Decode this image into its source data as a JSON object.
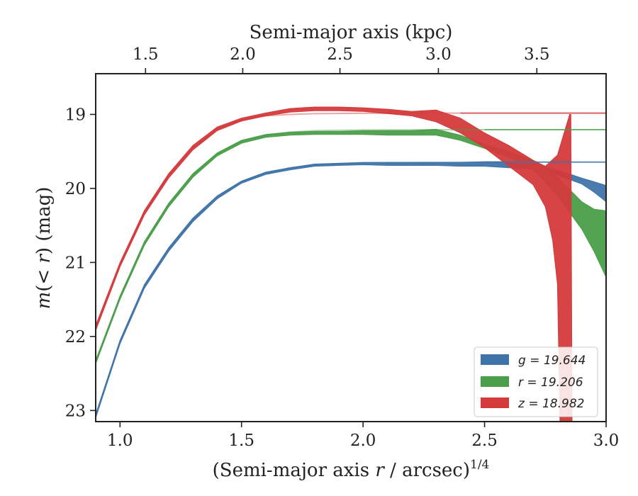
{
  "chart_data": {
    "type": "area",
    "xlabel": "(Semi-major axis r / arcsec)",
    "xlabel_parts": [
      "(Semi-major axis ",
      "r",
      " / arcsec)",
      "1/4"
    ],
    "ylabel_parts": [
      "m",
      "(< ",
      "r",
      ") (mag)"
    ],
    "top_xlabel": "Semi-major axis (kpc)",
    "xlim": [
      0.9,
      3.0
    ],
    "ylim": [
      23.15,
      18.45
    ],
    "y_inverted": true,
    "xticks": [
      "1.0",
      "1.5",
      "2.0",
      "2.5",
      "3.0"
    ],
    "xtick_values": [
      1.0,
      1.5,
      2.0,
      2.5,
      3.0
    ],
    "yticks": [
      "19",
      "20",
      "21",
      "22",
      "23"
    ],
    "ytick_values": [
      19,
      20,
      21,
      22,
      23
    ],
    "top_xticks": [
      "1.5",
      "2.0",
      "2.5",
      "3.0",
      "3.5"
    ],
    "top_xtick_positions_bottom_units": [
      1.105,
      1.505,
      1.905,
      2.31,
      2.715
    ],
    "grid": false,
    "legend_position": "bottom-right",
    "colors": {
      "g": "#3f74a8",
      "r": "#4a9e4a",
      "z": "#d43a3c"
    },
    "series": [
      {
        "name": "g = 19.644",
        "legend_label": "g = 19.644",
        "band": "g",
        "total_mag": 19.644,
        "upper": [
          [
            0.9,
            23.05
          ],
          [
            1.0,
            22.05
          ],
          [
            1.1,
            21.3
          ],
          [
            1.2,
            20.8
          ],
          [
            1.3,
            20.4
          ],
          [
            1.4,
            20.1
          ],
          [
            1.5,
            19.9
          ],
          [
            1.6,
            19.78
          ],
          [
            1.7,
            19.72
          ],
          [
            1.8,
            19.67
          ],
          [
            1.9,
            19.66
          ],
          [
            2.0,
            19.65
          ],
          [
            2.1,
            19.65
          ],
          [
            2.2,
            19.65
          ],
          [
            2.3,
            19.65
          ],
          [
            2.4,
            19.65
          ],
          [
            2.5,
            19.64
          ],
          [
            2.6,
            19.64
          ],
          [
            2.7,
            19.66
          ],
          [
            2.8,
            19.75
          ],
          [
            2.9,
            19.86
          ],
          [
            2.95,
            19.91
          ],
          [
            3.0,
            19.96
          ]
        ],
        "lower": [
          [
            0.9,
            23.1
          ],
          [
            1.0,
            22.1
          ],
          [
            1.1,
            21.35
          ],
          [
            1.2,
            20.85
          ],
          [
            1.3,
            20.45
          ],
          [
            1.4,
            20.14
          ],
          [
            1.5,
            19.93
          ],
          [
            1.6,
            19.81
          ],
          [
            1.7,
            19.75
          ],
          [
            1.8,
            19.7
          ],
          [
            1.9,
            19.69
          ],
          [
            2.0,
            19.68
          ],
          [
            2.1,
            19.69
          ],
          [
            2.2,
            19.69
          ],
          [
            2.3,
            19.69
          ],
          [
            2.4,
            19.7
          ],
          [
            2.5,
            19.7
          ],
          [
            2.6,
            19.72
          ],
          [
            2.7,
            19.74
          ],
          [
            2.8,
            19.82
          ],
          [
            2.9,
            19.94
          ],
          [
            2.95,
            20.05
          ],
          [
            3.0,
            20.18
          ]
        ]
      },
      {
        "name": "r = 19.206",
        "legend_label": "r = 19.206",
        "band": "r",
        "total_mag": 19.206,
        "upper": [
          [
            0.9,
            22.32
          ],
          [
            1.0,
            21.45
          ],
          [
            1.1,
            20.72
          ],
          [
            1.2,
            20.2
          ],
          [
            1.3,
            19.8
          ],
          [
            1.4,
            19.52
          ],
          [
            1.5,
            19.35
          ],
          [
            1.6,
            19.27
          ],
          [
            1.7,
            19.24
          ],
          [
            1.8,
            19.23
          ],
          [
            1.9,
            19.23
          ],
          [
            2.0,
            19.22
          ],
          [
            2.1,
            19.22
          ],
          [
            2.2,
            19.22
          ],
          [
            2.3,
            19.2
          ],
          [
            2.4,
            19.28
          ],
          [
            2.5,
            19.4
          ],
          [
            2.6,
            19.5
          ],
          [
            2.7,
            19.62
          ],
          [
            2.75,
            19.72
          ],
          [
            2.8,
            19.85
          ],
          [
            2.9,
            20.18
          ],
          [
            2.95,
            20.28
          ],
          [
            3.0,
            20.3
          ]
        ],
        "lower": [
          [
            0.9,
            22.37
          ],
          [
            1.0,
            21.5
          ],
          [
            1.1,
            20.77
          ],
          [
            1.2,
            20.25
          ],
          [
            1.3,
            19.85
          ],
          [
            1.4,
            19.56
          ],
          [
            1.5,
            19.39
          ],
          [
            1.6,
            19.31
          ],
          [
            1.7,
            19.28
          ],
          [
            1.8,
            19.27
          ],
          [
            1.9,
            19.27
          ],
          [
            2.0,
            19.27
          ],
          [
            2.1,
            19.28
          ],
          [
            2.2,
            19.28
          ],
          [
            2.3,
            19.28
          ],
          [
            2.4,
            19.35
          ],
          [
            2.5,
            19.46
          ],
          [
            2.6,
            19.58
          ],
          [
            2.7,
            19.74
          ],
          [
            2.8,
            20.1
          ],
          [
            2.9,
            20.55
          ],
          [
            2.95,
            20.85
          ],
          [
            3.0,
            21.2
          ]
        ]
      },
      {
        "name": "z = 18.982",
        "legend_label": "z = 18.982",
        "band": "z",
        "total_mag": 18.982,
        "upper": [
          [
            0.9,
            21.85
          ],
          [
            1.0,
            21.0
          ],
          [
            1.1,
            20.3
          ],
          [
            1.2,
            19.8
          ],
          [
            1.3,
            19.42
          ],
          [
            1.4,
            19.17
          ],
          [
            1.5,
            19.05
          ],
          [
            1.6,
            18.98
          ],
          [
            1.7,
            18.92
          ],
          [
            1.8,
            18.9
          ],
          [
            1.9,
            18.9
          ],
          [
            2.0,
            18.91
          ],
          [
            2.1,
            18.93
          ],
          [
            2.2,
            18.96
          ],
          [
            2.3,
            18.94
          ],
          [
            2.4,
            19.05
          ],
          [
            2.5,
            19.25
          ],
          [
            2.6,
            19.42
          ],
          [
            2.7,
            19.62
          ],
          [
            2.75,
            19.7
          ],
          [
            2.8,
            19.55
          ],
          [
            2.85,
            19.0
          ],
          [
            2.855,
            19.0
          ]
        ],
        "lower": [
          [
            0.9,
            21.92
          ],
          [
            1.0,
            21.06
          ],
          [
            1.1,
            20.36
          ],
          [
            1.2,
            19.86
          ],
          [
            1.3,
            19.48
          ],
          [
            1.4,
            19.22
          ],
          [
            1.5,
            19.09
          ],
          [
            1.6,
            19.02
          ],
          [
            1.7,
            18.97
          ],
          [
            1.8,
            18.95
          ],
          [
            1.9,
            18.95
          ],
          [
            2.0,
            18.96
          ],
          [
            2.1,
            18.99
          ],
          [
            2.2,
            19.02
          ],
          [
            2.3,
            19.1
          ],
          [
            2.4,
            19.25
          ],
          [
            2.5,
            19.45
          ],
          [
            2.6,
            19.7
          ],
          [
            2.7,
            19.95
          ],
          [
            2.75,
            20.25
          ],
          [
            2.78,
            20.7
          ],
          [
            2.8,
            21.3
          ],
          [
            2.81,
            23.15
          ],
          [
            2.86,
            23.15
          ]
        ]
      }
    ],
    "model_curves": [
      {
        "band": "g",
        "asymptote": 19.644,
        "points": [
          [
            0.9,
            23.07
          ],
          [
            1.0,
            22.07
          ],
          [
            1.1,
            21.32
          ],
          [
            1.2,
            20.82
          ],
          [
            1.3,
            20.42
          ],
          [
            1.4,
            20.11
          ],
          [
            1.5,
            19.91
          ],
          [
            1.6,
            19.79
          ],
          [
            1.7,
            19.72
          ],
          [
            1.8,
            19.68
          ],
          [
            2.0,
            19.65
          ],
          [
            2.5,
            19.644
          ],
          [
            3.0,
            19.644
          ]
        ]
      },
      {
        "band": "r",
        "asymptote": 19.206,
        "points": [
          [
            0.9,
            22.34
          ],
          [
            1.0,
            21.47
          ],
          [
            1.1,
            20.74
          ],
          [
            1.2,
            20.22
          ],
          [
            1.3,
            19.82
          ],
          [
            1.4,
            19.53
          ],
          [
            1.5,
            19.36
          ],
          [
            1.6,
            19.28
          ],
          [
            1.7,
            19.24
          ],
          [
            1.8,
            19.22
          ],
          [
            2.0,
            19.21
          ],
          [
            2.5,
            19.206
          ],
          [
            3.0,
            19.206
          ]
        ]
      },
      {
        "band": "z",
        "asymptote": 18.982,
        "points": [
          [
            0.9,
            21.88
          ],
          [
            1.0,
            21.03
          ],
          [
            1.1,
            20.33
          ],
          [
            1.2,
            19.83
          ],
          [
            1.3,
            19.45
          ],
          [
            1.4,
            19.2
          ],
          [
            1.5,
            19.07
          ],
          [
            1.6,
            19.02
          ],
          [
            1.7,
            19.0
          ],
          [
            1.8,
            18.99
          ],
          [
            2.0,
            18.985
          ],
          [
            2.5,
            18.982
          ],
          [
            3.0,
            18.982
          ]
        ]
      }
    ],
    "asymptote_lines_start_x": [
      2.5,
      2.5,
      2.4
    ]
  }
}
